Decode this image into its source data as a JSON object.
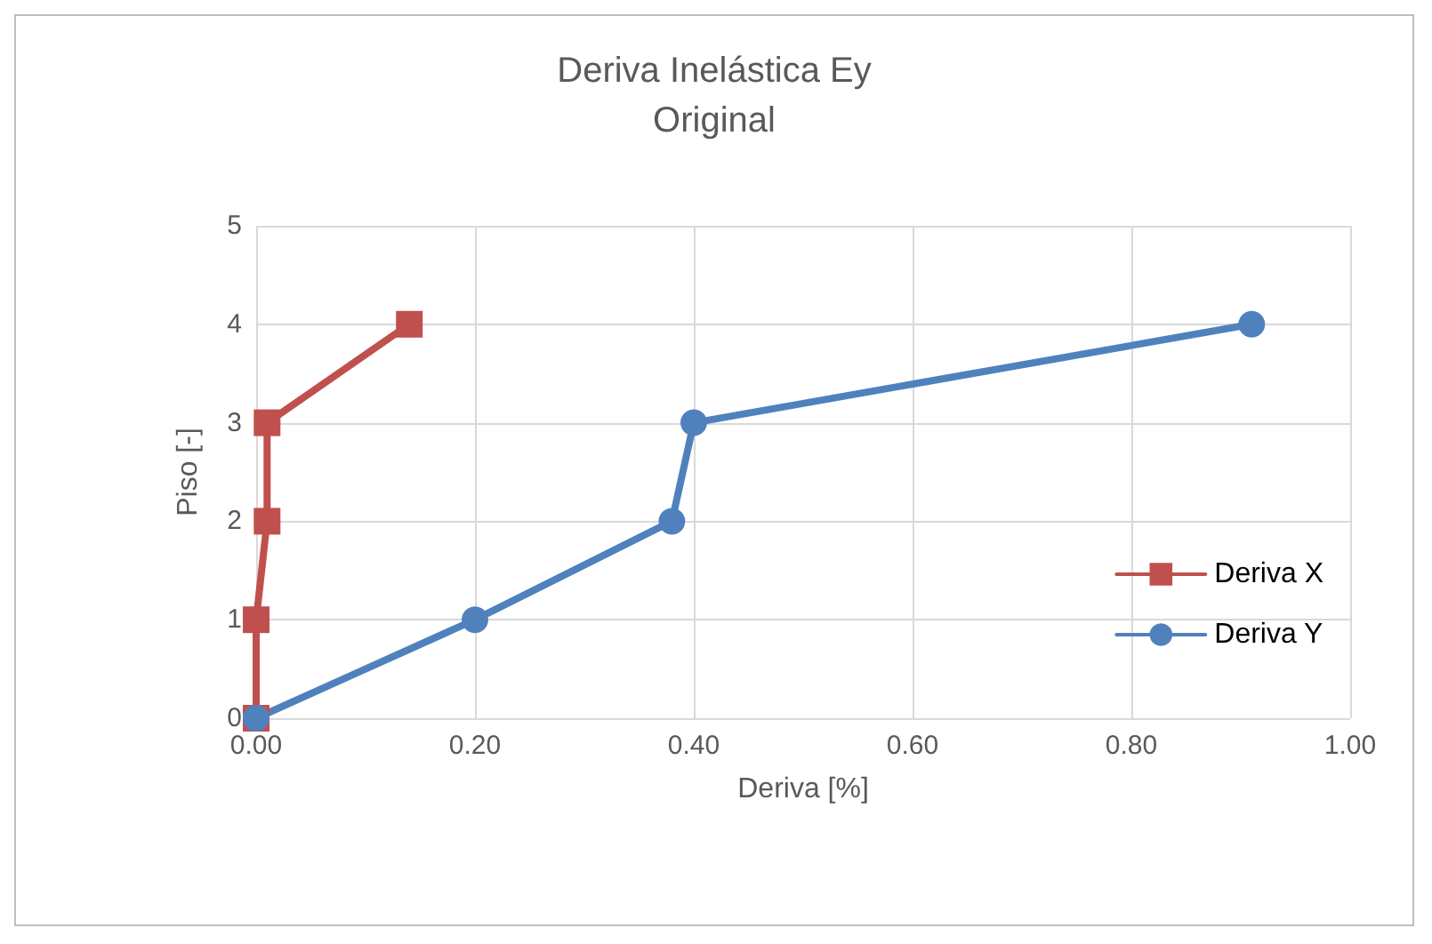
{
  "chart_data": {
    "type": "line",
    "title": "Deriva Inelástica Ey\nOriginal",
    "xlabel": "Deriva [%]",
    "ylabel": "Piso [-]",
    "xlim": [
      0,
      1
    ],
    "xticks": [
      {
        "value": 0,
        "label": "0.00"
      },
      {
        "value": 0.2,
        "label": "0.20"
      },
      {
        "value": 0.4,
        "label": "0.40"
      },
      {
        "value": 0.6,
        "label": "0.60"
      },
      {
        "value": 0.8,
        "label": "0.80"
      },
      {
        "value": 1,
        "label": "1.00"
      }
    ],
    "ylim": [
      0,
      5
    ],
    "yticks": [
      0,
      1,
      2,
      3,
      4,
      5
    ],
    "grid": true,
    "legend": "bottom right",
    "series": [
      {
        "name": "Deriva X",
        "color": "#c0504d",
        "marker": "square",
        "x": [
          0.0,
          0.0,
          0.01,
          0.01,
          0.14
        ],
        "values": [
          0,
          1,
          2,
          3,
          4
        ]
      },
      {
        "name": "Deriva Y",
        "color": "#4f81bd",
        "marker": "circle",
        "x": [
          0.0,
          0.2,
          0.38,
          0.4,
          0.91
        ],
        "values": [
          0,
          1,
          2,
          3,
          4
        ]
      }
    ]
  }
}
